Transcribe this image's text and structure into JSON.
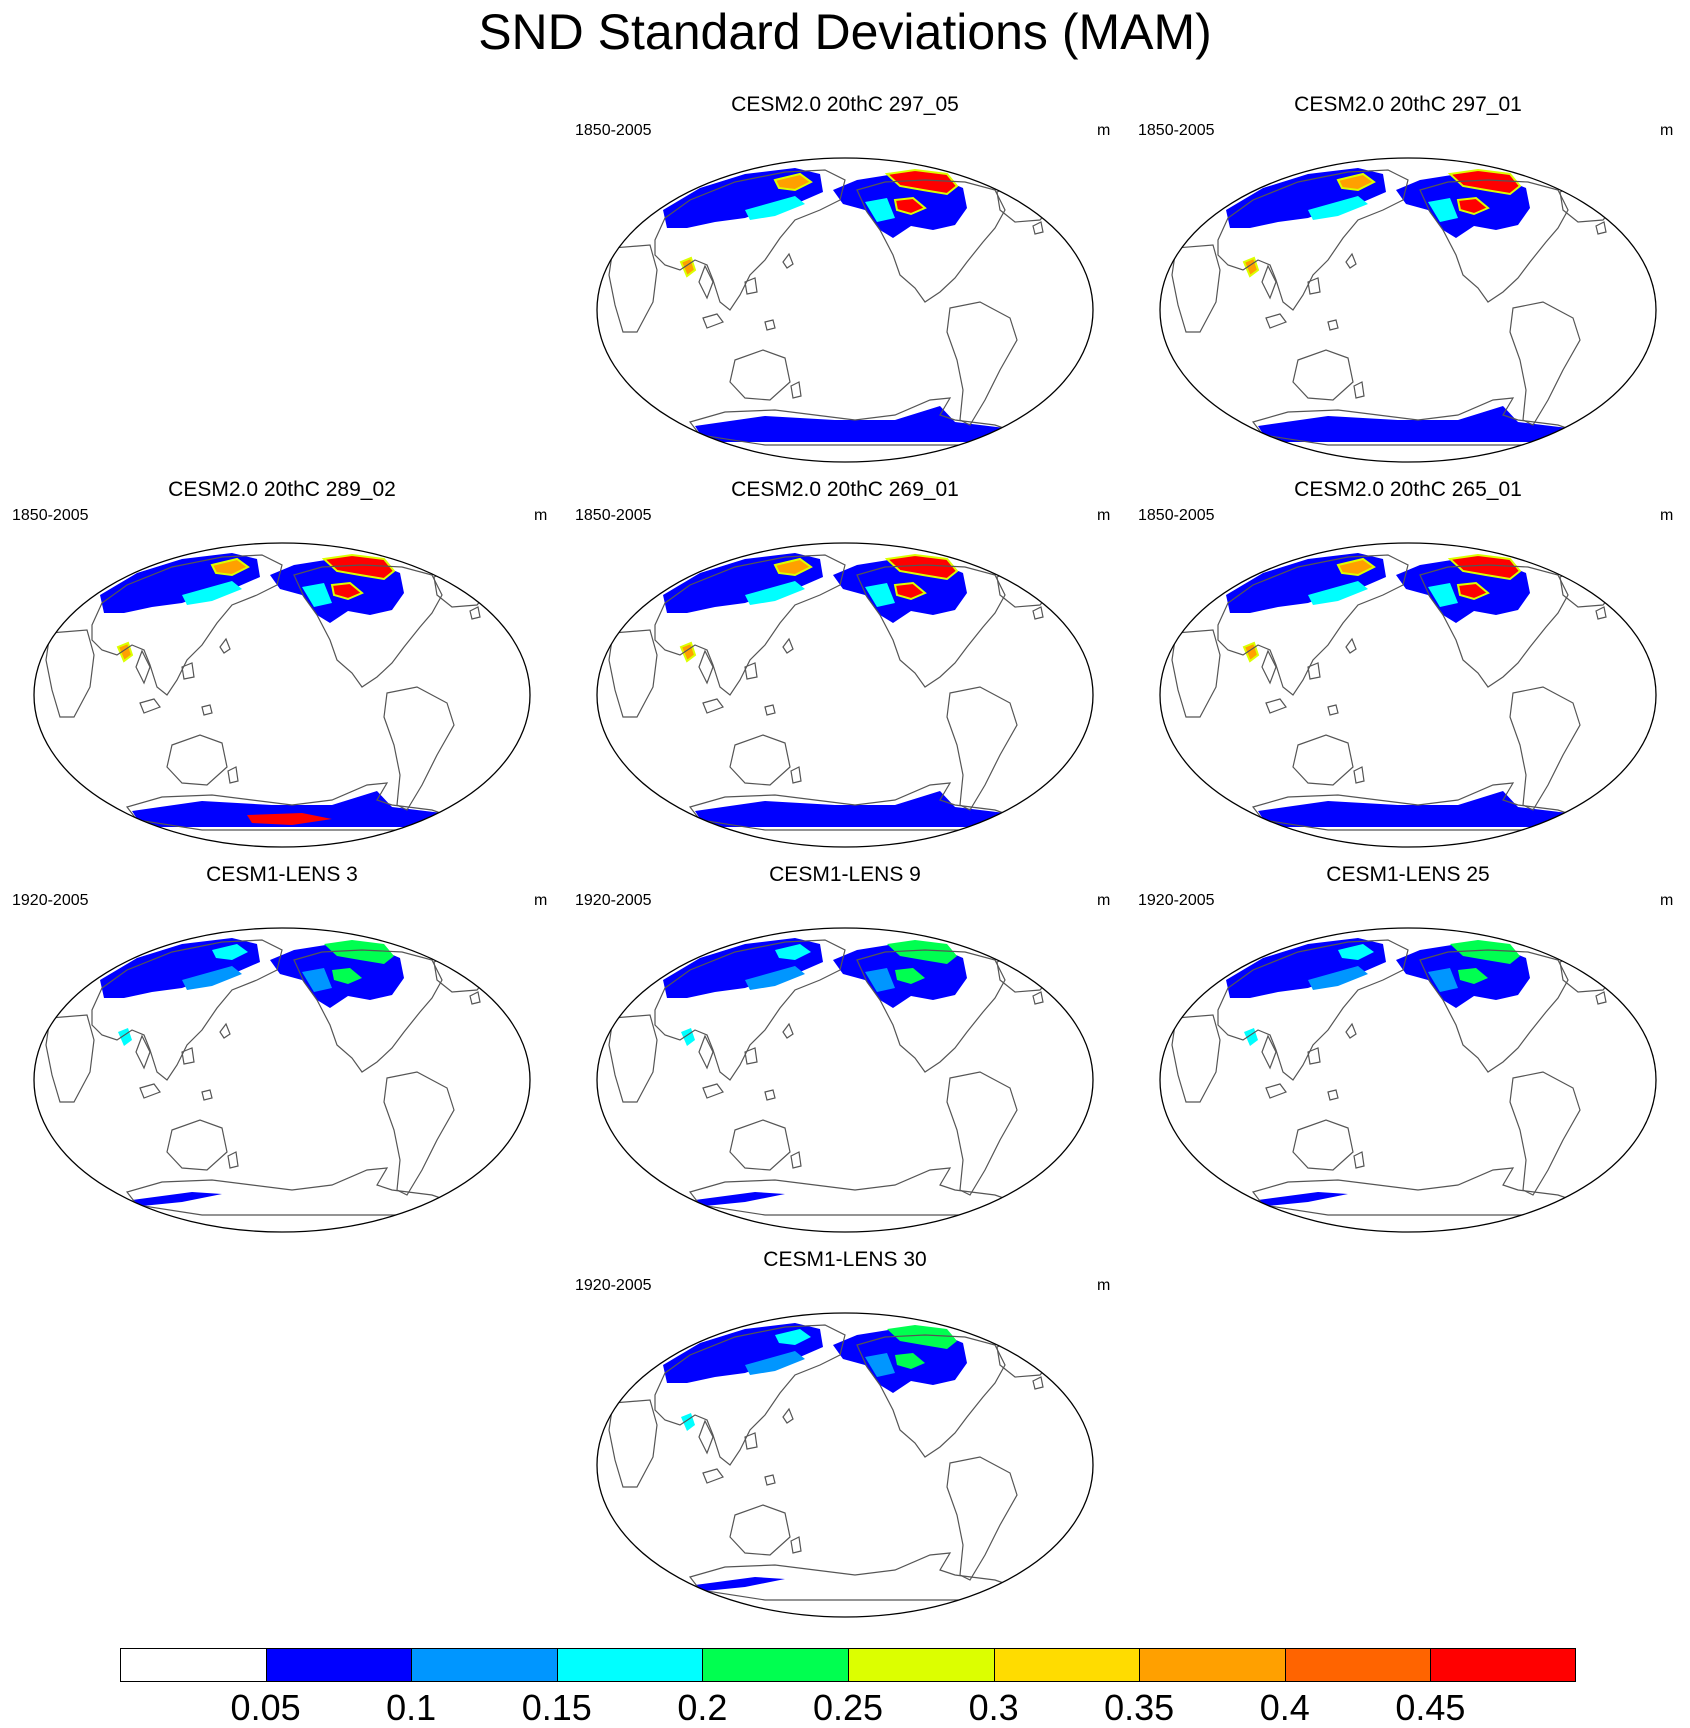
{
  "title": "SND Standard Deviations (MAM)",
  "panels": [
    {
      "title": "CESM2.0 20thC 297_05",
      "period": "1850-2005",
      "units": "m",
      "intensity": "high",
      "antarctic": "low"
    },
    {
      "title": "CESM2.0 20thC 297_01",
      "period": "1850-2005",
      "units": "m",
      "intensity": "high",
      "antarctic": "low"
    },
    {
      "title": "CESM2.0 20thC 289_02",
      "period": "1850-2005",
      "units": "m",
      "intensity": "high",
      "antarctic": "high"
    },
    {
      "title": "CESM2.0 20thC 269_01",
      "period": "1850-2005",
      "units": "m",
      "intensity": "high",
      "antarctic": "low"
    },
    {
      "title": "CESM2.0 20thC 265_01",
      "period": "1850-2005",
      "units": "m",
      "intensity": "high",
      "antarctic": "low"
    },
    {
      "title": "CESM1-LENS 3",
      "period": "1920-2005",
      "units": "m",
      "intensity": "low",
      "antarctic": "sparse"
    },
    {
      "title": "CESM1-LENS 9",
      "period": "1920-2005",
      "units": "m",
      "intensity": "low",
      "antarctic": "sparse"
    },
    {
      "title": "CESM1-LENS 25",
      "period": "1920-2005",
      "units": "m",
      "intensity": "low",
      "antarctic": "sparse"
    },
    {
      "title": "CESM1-LENS 30",
      "period": "1920-2005",
      "units": "m",
      "intensity": "low",
      "antarctic": "sparse"
    }
  ],
  "colorbar": {
    "labels": [
      "0.05",
      "0.1",
      "0.15",
      "0.2",
      "0.25",
      "0.3",
      "0.35",
      "0.4",
      "0.45"
    ],
    "colors": [
      "#ffffff",
      "#0000ff",
      "#0096ff",
      "#00ffff",
      "#00ff50",
      "#dcff00",
      "#ffdc00",
      "#ffa000",
      "#ff6400",
      "#ff0000"
    ]
  }
}
